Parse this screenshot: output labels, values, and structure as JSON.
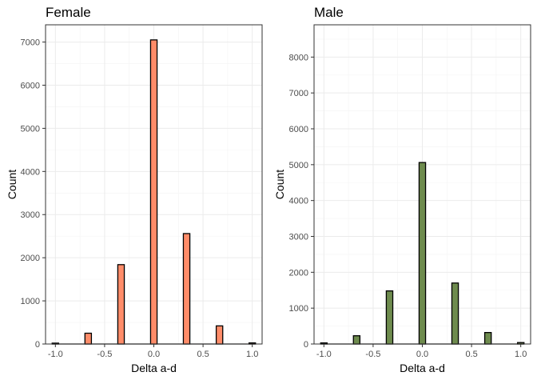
{
  "chart_data": [
    {
      "type": "bar",
      "title": "Female",
      "xlabel": "Delta a-d",
      "ylabel": "Count",
      "xlim": [
        -1.1,
        1.1
      ],
      "ylim": [
        0,
        7400
      ],
      "xticks": [
        -1.0,
        -0.5,
        0.0,
        0.5,
        1.0
      ],
      "xtick_labels": [
        "-1.0",
        "-0.5",
        "0.0",
        "0.5",
        "1.0"
      ],
      "yticks": [
        0,
        1000,
        2000,
        3000,
        4000,
        5000,
        6000,
        7000
      ],
      "ytick_labels": [
        "0",
        "1000",
        "2000",
        "3000",
        "4000",
        "5000",
        "6000",
        "7000"
      ],
      "grid": true,
      "bin_width": 0.066,
      "x": [
        -1.0,
        -0.667,
        -0.333,
        0.0,
        0.333,
        0.667,
        1.0
      ],
      "values": [
        20,
        250,
        1840,
        7050,
        2560,
        420,
        25
      ],
      "color": "#FF8C69"
    },
    {
      "type": "bar",
      "title": "Male",
      "xlabel": "Delta a-d",
      "ylabel": "Count",
      "xlim": [
        -1.1,
        1.1
      ],
      "ylim": [
        0,
        8900
      ],
      "xticks": [
        -1.0,
        -0.5,
        0.0,
        0.5,
        1.0
      ],
      "xtick_labels": [
        "-1.0",
        "-0.5",
        "0.0",
        "0.5",
        "1.0"
      ],
      "yticks": [
        0,
        1000,
        2000,
        3000,
        4000,
        5000,
        6000,
        7000,
        8000
      ],
      "ytick_labels": [
        "0",
        "1000",
        "2000",
        "3000",
        "4000",
        "5000",
        "6000",
        "7000",
        "8000"
      ],
      "grid": true,
      "bin_width": 0.066,
      "x": [
        -1.0,
        -0.667,
        -0.333,
        0.0,
        0.333,
        0.667,
        1.0
      ],
      "values": [
        30,
        230,
        1480,
        5060,
        1700,
        320,
        40
      ],
      "color": "#6E8B4E"
    }
  ]
}
